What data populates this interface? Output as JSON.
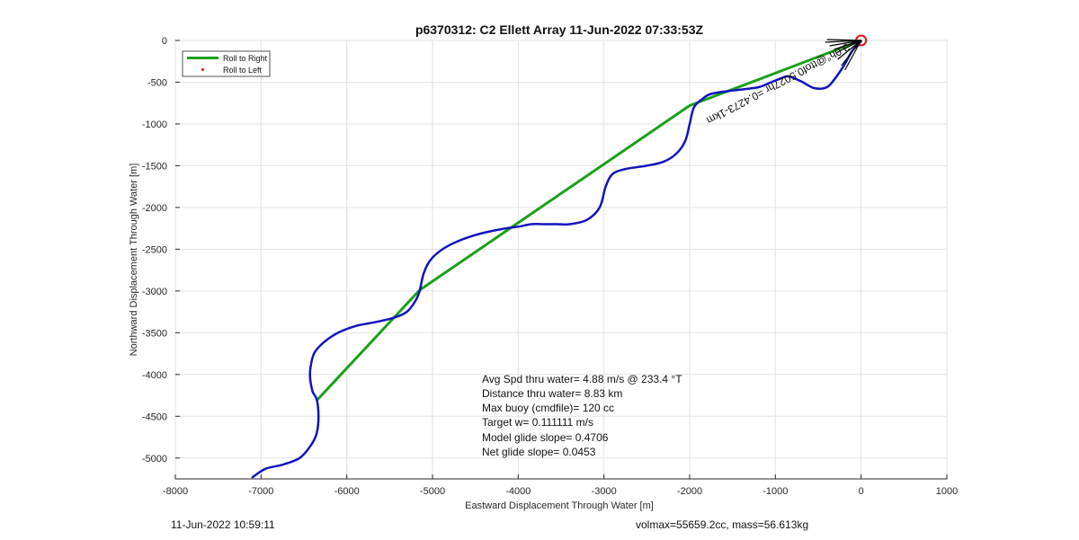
{
  "figure": {
    "footer_left": "11-Jun-2022 10:59:11",
    "footer_right": "volmax=55659.2cc, mass=56.613kg"
  },
  "chart_data": {
    "type": "line",
    "title": "p6370312: C2 Ellett Array 11-Jun-2022 07:33:53Z",
    "xlabel": "Eastward Displacement Through Water [m]",
    "ylabel": "Northward Displacement Through Water [m]",
    "xlim": [
      -8000,
      1000
    ],
    "ylim": [
      -5250,
      0
    ],
    "xticks": [
      -8000,
      -7000,
      -6000,
      -5000,
      -4000,
      -3000,
      -2000,
      -1000,
      0,
      1000
    ],
    "yticks": [
      0,
      -500,
      -1000,
      -1500,
      -2000,
      -2500,
      -3000,
      -3500,
      -4000,
      -4500,
      -5000
    ],
    "grid": true,
    "legend": {
      "location": "top-left",
      "entries": [
        "Roll to Right",
        "Roll to Left"
      ]
    },
    "colors": {
      "roll_right": "#1aa01a",
      "roll_left": "#dd1111",
      "track": "#1212c0",
      "heading_marks": "#000000",
      "start_marker": "#dd1111"
    },
    "series": [
      {
        "name": "Roll to Right",
        "x": [
          0,
          -1100,
          -2000,
          -5150,
          -6350
        ],
        "y": [
          0,
          -430,
          -780,
          -2990,
          -4310
        ]
      },
      {
        "name": "Roll to Left",
        "x": [],
        "y": []
      },
      {
        "x": [
          0,
          -100,
          -200,
          -300,
          -400,
          -550,
          -700,
          -850,
          -950,
          -1050,
          -1200,
          -1500,
          -1750,
          -1850,
          -1950,
          -2000,
          -2050,
          -2150,
          -2300,
          -2500,
          -2750,
          -2900,
          -2980,
          -3050,
          -3200,
          -3400,
          -3550,
          -3700,
          -3850,
          -4000,
          -4200,
          -4500,
          -4800,
          -5000,
          -5100,
          -5150,
          -5200,
          -5300,
          -5450,
          -5650,
          -5900,
          -6100,
          -6250,
          -6350,
          -6400,
          -6430,
          -6400,
          -6350,
          -6330,
          -6350,
          -6420,
          -6550,
          -6750,
          -6950,
          -7100
        ],
        "y": [
          -10,
          -120,
          -300,
          -450,
          -560,
          -570,
          -490,
          -430,
          -460,
          -500,
          -560,
          -600,
          -640,
          -700,
          -800,
          -1000,
          -1200,
          -1350,
          -1450,
          -1500,
          -1540,
          -1600,
          -1750,
          -2000,
          -2150,
          -2200,
          -2200,
          -2200,
          -2200,
          -2230,
          -2260,
          -2330,
          -2450,
          -2600,
          -2780,
          -3000,
          -3120,
          -3250,
          -3320,
          -3370,
          -3420,
          -3500,
          -3600,
          -3700,
          -3800,
          -4000,
          -4200,
          -4300,
          -4500,
          -4700,
          -4850,
          -5000,
          -5080,
          -5130,
          -5230
        ]
      }
    ],
    "annotations": [
      "Avg Spd thru water=  4.88 m/s @ 233.4 °T",
      "Distance thru water=  8.83 km",
      "Max buoy (cmdfile)= 120 cc",
      "Target w= 0.111111 m/s",
      "Model glide slope= 0.4706",
      "Net glide slope= 0.0453"
    ],
    "rotated_label": "3.0h°@ttof0.5027hr =0.4273‐1km"
  }
}
